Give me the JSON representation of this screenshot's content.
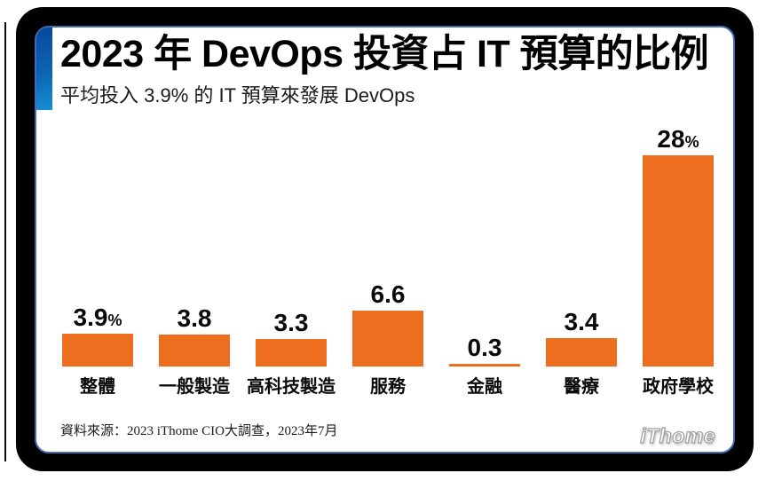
{
  "header": {
    "title": "2023 年 DevOps 投資占 IT 預算的比例",
    "subtitle": "平均投入 3.9% 的 IT 預算來發展 DevOps"
  },
  "footer": {
    "source": "資料來源：2023 iThome CIO大調查，2023年7月",
    "logo": "iThome"
  },
  "colors": {
    "bar": "#ed6e1e",
    "accent_top": "#07489b",
    "accent_bottom": "#1690d2",
    "card_border": "#3f6db5",
    "frame": "#000000",
    "text": "#0a0a0a"
  },
  "chart_data": {
    "type": "bar",
    "title": "2023 年 DevOps 投資占 IT 預算的比例",
    "subtitle": "平均投入 3.9% 的 IT 預算來發展 DevOps",
    "unit": "%",
    "xlabel": "",
    "ylabel": "",
    "grid": false,
    "legend": false,
    "categories": [
      "整體",
      "一般製造",
      "高科技製造",
      "服務",
      "金融",
      "醫療",
      "政府學校"
    ],
    "values": [
      3.9,
      3.8,
      3.3,
      6.6,
      0.3,
      3.4,
      28
    ],
    "value_labels": [
      "3.9",
      "3.8",
      "3.3",
      "6.6",
      "0.3",
      "3.4",
      "28"
    ],
    "value_suffixes": [
      "%",
      "",
      "",
      "",
      "",
      "",
      "%"
    ]
  }
}
